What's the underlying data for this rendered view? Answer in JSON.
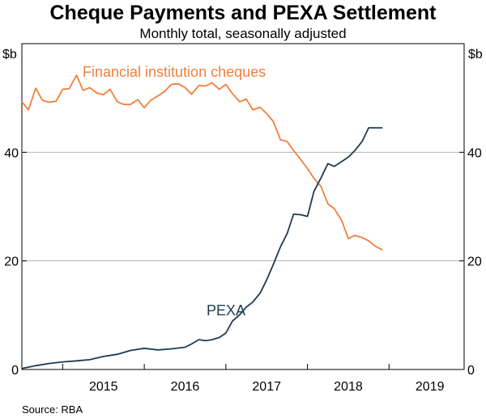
{
  "chart_data": {
    "type": "line",
    "title": "Cheque Payments and PEXA Settlement",
    "subtitle": "Monthly total, seasonally adjusted",
    "unit_left": "$b",
    "unit_right": "$b",
    "source": "Source:   RBA",
    "ylim": [
      0,
      60
    ],
    "y_ticks": [
      0,
      20,
      40
    ],
    "x_range": [
      2014.5,
      2019.92
    ],
    "x_tick_labels": [
      "2015",
      "2016",
      "2017",
      "2018",
      "2019"
    ],
    "grid": true,
    "series": [
      {
        "name": "Financial institution cheques",
        "color": "#f07f3c",
        "x": [
          2014.5,
          2014.58,
          2014.67,
          2014.75,
          2014.83,
          2014.92,
          2015.0,
          2015.08,
          2015.17,
          2015.25,
          2015.33,
          2015.42,
          2015.5,
          2015.58,
          2015.67,
          2015.75,
          2015.83,
          2015.92,
          2016.0,
          2016.08,
          2016.17,
          2016.25,
          2016.33,
          2016.42,
          2016.5,
          2016.58,
          2016.67,
          2016.75,
          2016.83,
          2016.92,
          2017.0,
          2017.08,
          2017.17,
          2017.25,
          2017.33,
          2017.42,
          2017.5,
          2017.58,
          2017.67,
          2017.75,
          2017.83,
          2017.92,
          2018.0,
          2018.08,
          2018.17,
          2018.25,
          2018.33,
          2018.42,
          2018.5,
          2018.58,
          2018.67,
          2018.75,
          2018.83,
          2018.92
        ],
        "values": [
          49.3,
          47.8,
          51.8,
          49.6,
          49.2,
          49.4,
          51.6,
          51.7,
          54.2,
          51.4,
          51.9,
          50.9,
          50.6,
          51.6,
          49.3,
          48.8,
          48.8,
          49.7,
          48.2,
          49.6,
          50.4,
          51.2,
          52.5,
          52.6,
          51.9,
          50.7,
          52.3,
          52.2,
          52.8,
          51.6,
          52.5,
          50.8,
          49.3,
          49.8,
          47.8,
          48.3,
          47.1,
          45.7,
          42.3,
          42.0,
          40.3,
          38.6,
          37.0,
          35.2,
          33.6,
          30.5,
          29.6,
          27.4,
          24.1,
          24.7,
          24.3,
          23.7,
          22.7,
          22.0
        ]
      },
      {
        "name": "PEXA",
        "color": "#1d3b52",
        "x": [
          2014.5,
          2014.67,
          2014.83,
          2015.0,
          2015.17,
          2015.33,
          2015.5,
          2015.67,
          2015.83,
          2016.0,
          2016.17,
          2016.33,
          2016.5,
          2016.58,
          2016.67,
          2016.75,
          2016.83,
          2016.92,
          2017.0,
          2017.08,
          2017.17,
          2017.25,
          2017.33,
          2017.42,
          2017.5,
          2017.58,
          2017.67,
          2017.75,
          2017.83,
          2017.92,
          2018.0,
          2018.08,
          2018.17,
          2018.25,
          2018.33,
          2018.42,
          2018.5,
          2018.58,
          2018.67,
          2018.75,
          2018.83,
          2018.92
        ],
        "values": [
          0.2,
          0.7,
          1.1,
          1.4,
          1.6,
          1.8,
          2.4,
          2.8,
          3.5,
          3.9,
          3.6,
          3.8,
          4.1,
          4.7,
          5.5,
          5.3,
          5.5,
          5.9,
          6.7,
          8.9,
          10.1,
          11.5,
          12.4,
          14.1,
          16.5,
          19.3,
          22.6,
          25.0,
          28.6,
          28.5,
          28.2,
          32.8,
          35.4,
          37.9,
          37.4,
          38.3,
          39.1,
          40.3,
          42.0,
          44.5,
          44.5,
          44.5
        ]
      }
    ],
    "annotations": [
      {
        "text": "Financial institution cheques",
        "series": "Financial institution cheques"
      },
      {
        "text": "PEXA",
        "series": "PEXA"
      }
    ]
  }
}
